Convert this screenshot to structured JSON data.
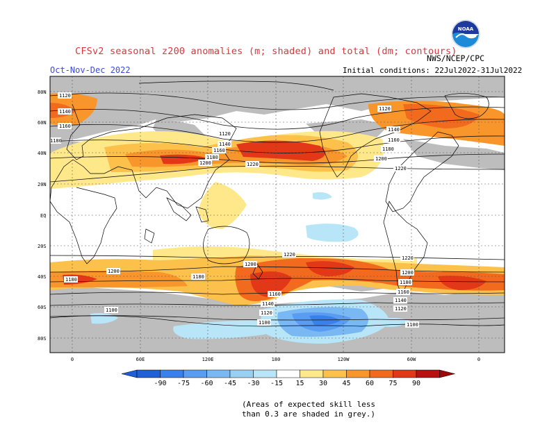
{
  "title": "CFSv2 seasonal z200 anomalies (m; shaded) and total (dm; contours)",
  "agency": "NWS/NCEP/CPC",
  "logo_text": "NOAA",
  "season": "Oct-Nov-Dec 2022",
  "initial_conditions": "Initial conditions: 22Jul2022-31Jul2022",
  "map": {
    "lat_labels": [
      "80N",
      "60N",
      "40N",
      "20N",
      "EQ",
      "20S",
      "40S",
      "60S",
      "80S"
    ],
    "lon_labels": [
      "0",
      "60E",
      "120E",
      "180",
      "120W",
      "60W",
      "0"
    ],
    "contour_labels": [
      "1120",
      "1140",
      "1160",
      "1180",
      "1120",
      "1140",
      "1160",
      "1180",
      "1200",
      "1220",
      "1120",
      "1140",
      "1160",
      "1180",
      "1200",
      "1220",
      "1180",
      "1200",
      "1180",
      "1200",
      "1220",
      "1160",
      "1140",
      "1120",
      "1100",
      "1220",
      "1200",
      "1180",
      "1160",
      "1140",
      "1120",
      "1100",
      "1100"
    ]
  },
  "colorbar": {
    "ticks": [
      "-90",
      "-75",
      "-60",
      "-45",
      "-30",
      "-15",
      "15",
      "30",
      "45",
      "60",
      "75",
      "90"
    ],
    "colors": [
      "#1f5fd8",
      "#3a80ec",
      "#5a9cf2",
      "#7ab8f4",
      "#98d0f4",
      "#b8e6f8",
      "#ffffff",
      "#ffe88a",
      "#fcc14a",
      "#f8962c",
      "#f26a1e",
      "#e23818",
      "#b81010"
    ]
  },
  "note_lines": [
    "(Areas of expected skill less",
    "than 0.3 are shaded in grey.)"
  ]
}
